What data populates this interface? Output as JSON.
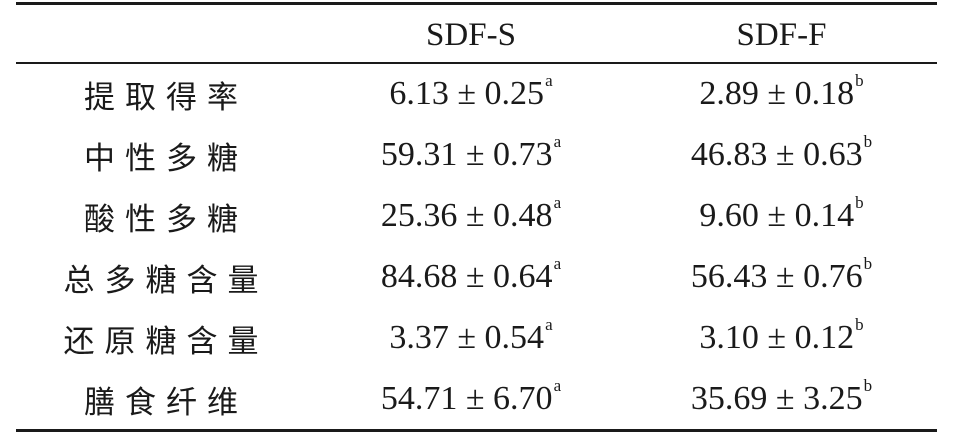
{
  "table": {
    "header": [
      "",
      "SDF-S",
      "SDF-F"
    ],
    "rows": [
      {
        "label": "提取得率",
        "s": "6.13 ± 0.25",
        "s_sup": "a",
        "f": "2.89 ± 0.18",
        "f_sup": "b"
      },
      {
        "label": "中性多糖",
        "s": "59.31 ± 0.73",
        "s_sup": "a",
        "f": "46.83 ± 0.63",
        "f_sup": "b"
      },
      {
        "label": "酸性多糖",
        "s": "25.36 ± 0.48",
        "s_sup": "a",
        "f": "9.60 ± 0.14",
        "f_sup": "b"
      },
      {
        "label": "总多糖含量",
        "s": "84.68 ± 0.64",
        "s_sup": "a",
        "f": "56.43 ± 0.76",
        "f_sup": "b"
      },
      {
        "label": "还原糖含量",
        "s": "3.37 ± 0.54",
        "s_sup": "a",
        "f": "3.10 ± 0.12",
        "f_sup": "b"
      },
      {
        "label": "膳食纤维",
        "s": "54.71 ± 6.70",
        "s_sup": "a",
        "f": "35.69 ± 3.25",
        "f_sup": "b"
      }
    ]
  }
}
